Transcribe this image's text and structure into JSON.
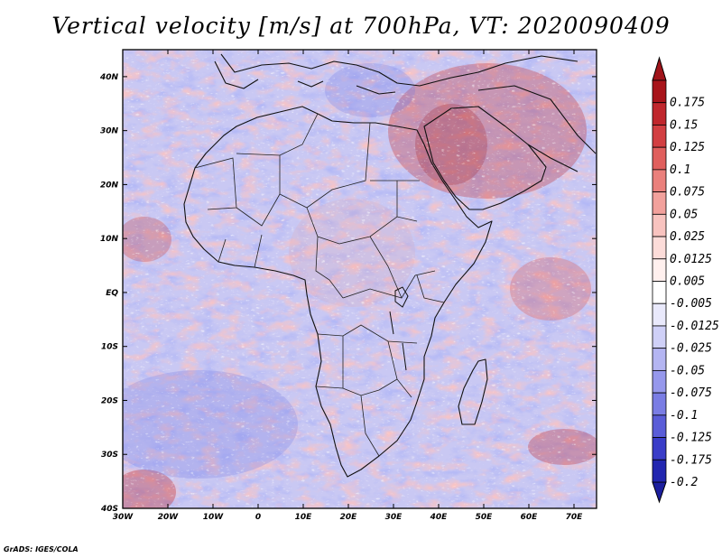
{
  "title": "Vertical velocity [m/s] at 700hPa, VT: 2020090409",
  "credit": "GrADS: IGES/COLA",
  "map": {
    "variable": "Vertical velocity",
    "level": "700hPa",
    "valid_time": "2020090409",
    "lon_range": [
      -30,
      75
    ],
    "lat_range": [
      -40,
      45
    ],
    "lat_ticks": [
      {
        "value": 40,
        "label": "40N"
      },
      {
        "value": 30,
        "label": "30N"
      },
      {
        "value": 20,
        "label": "20N"
      },
      {
        "value": 10,
        "label": "10N"
      },
      {
        "value": 0,
        "label": "EQ"
      },
      {
        "value": -10,
        "label": "10S"
      },
      {
        "value": -20,
        "label": "20S"
      },
      {
        "value": -30,
        "label": "30S"
      },
      {
        "value": -40,
        "label": "40S"
      }
    ],
    "lon_ticks": [
      {
        "value": -30,
        "label": "30W"
      },
      {
        "value": -20,
        "label": "20W"
      },
      {
        "value": -10,
        "label": "10W"
      },
      {
        "value": 0,
        "label": "0"
      },
      {
        "value": 10,
        "label": "10E"
      },
      {
        "value": 20,
        "label": "20E"
      },
      {
        "value": 30,
        "label": "30E"
      },
      {
        "value": 40,
        "label": "40E"
      },
      {
        "value": 50,
        "label": "50E"
      },
      {
        "value": 60,
        "label": "60E"
      },
      {
        "value": 70,
        "label": "70E"
      }
    ]
  },
  "colorbar": {
    "levels": [
      {
        "label": "0.175",
        "color": "#a8141a"
      },
      {
        "label": "0.15",
        "color": "#c0272d"
      },
      {
        "label": "0.125",
        "color": "#d23f42"
      },
      {
        "label": "0.1",
        "color": "#e05f5d"
      },
      {
        "label": "0.075",
        "color": "#ea807c"
      },
      {
        "label": "0.05",
        "color": "#f2a19c"
      },
      {
        "label": "0.025",
        "color": "#f8c3bf"
      },
      {
        "label": "0.0125",
        "color": "#fcdcd9"
      },
      {
        "label": "0.005",
        "color": "#fff0ee"
      },
      {
        "label": "-0.005",
        "color": "#ffffff"
      },
      {
        "label": "-0.0125",
        "color": "#e9e9fb"
      },
      {
        "label": "-0.025",
        "color": "#cfd0f7"
      },
      {
        "label": "-0.05",
        "color": "#b4b5f2"
      },
      {
        "label": "-0.075",
        "color": "#9698ec"
      },
      {
        "label": "-0.1",
        "color": "#7a7de4"
      },
      {
        "label": "-0.125",
        "color": "#5a5dd8"
      },
      {
        "label": "-0.175",
        "color": "#3a3dc8"
      },
      {
        "label": "-0.2",
        "color": "#2226b0"
      }
    ],
    "top_arrow_color": "#a0141a",
    "bottom_arrow_color": "#1c1f9e"
  }
}
